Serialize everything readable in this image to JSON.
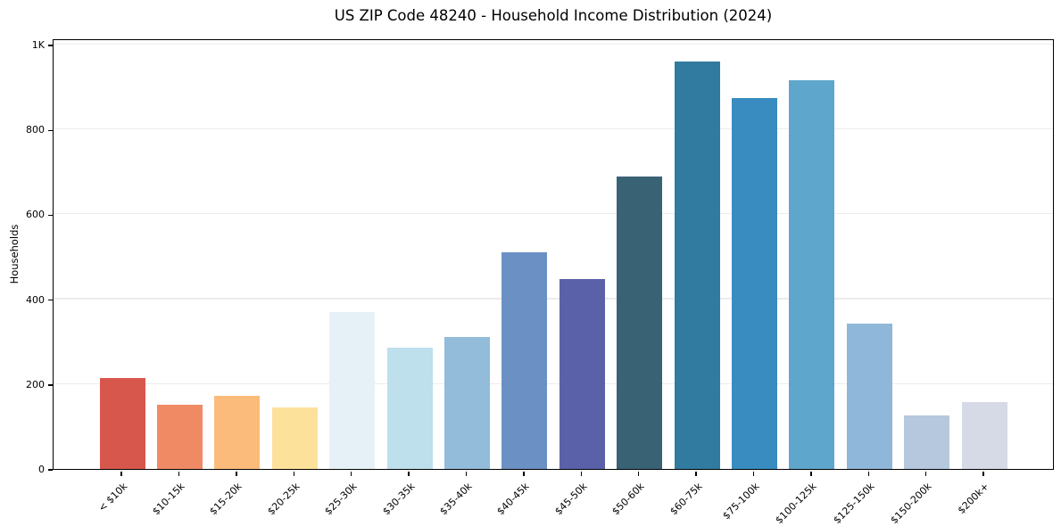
{
  "figure": {
    "title": "US ZIP Code 48240 - Household Income Distribution (2024)"
  },
  "chart_data": {
    "type": "bar",
    "title": "US ZIP Code 48240 - Household Income Distribution (2024)",
    "xlabel": "",
    "ylabel": "Households",
    "categories": [
      "< $10k",
      "$10-15k",
      "$15-20k",
      "$20-25k",
      "$25-30k",
      "$30-35k",
      "$35-40k",
      "$40-45k",
      "$45-50k",
      "$50-60k",
      "$60-75k",
      "$75-100k",
      "$100-125k",
      "$125-150k",
      "$150-200k",
      "$200k+"
    ],
    "values": [
      215,
      151,
      172,
      145,
      370,
      285,
      311,
      510,
      448,
      690,
      960,
      875,
      915,
      343,
      126,
      157
    ],
    "bar_colors": [
      "#d8574d",
      "#f08a65",
      "#fbbc7b",
      "#fce19b",
      "#e6f1f7",
      "#bedfec",
      "#92bcda",
      "#6b90c4",
      "#5a61a8",
      "#3a6275",
      "#327ba0",
      "#388cc0",
      "#5fa6cd",
      "#8fb7d9",
      "#b5c8de",
      "#d6d9e6"
    ],
    "ylim": [
      0,
      1000
    ],
    "yticks": [
      {
        "value": 0,
        "label": "0"
      },
      {
        "value": 200,
        "label": "200"
      },
      {
        "value": 400,
        "label": "400"
      },
      {
        "value": 600,
        "label": "600"
      },
      {
        "value": 800,
        "label": "800"
      },
      {
        "value": 1000,
        "label": "1K"
      }
    ],
    "gridline_values": [
      200,
      400,
      600,
      800,
      1000
    ],
    "grid": "horizontal",
    "legend": "none",
    "background": "#ffffff",
    "frame_color": "#000000",
    "x_tick_rotation_deg": 45
  }
}
